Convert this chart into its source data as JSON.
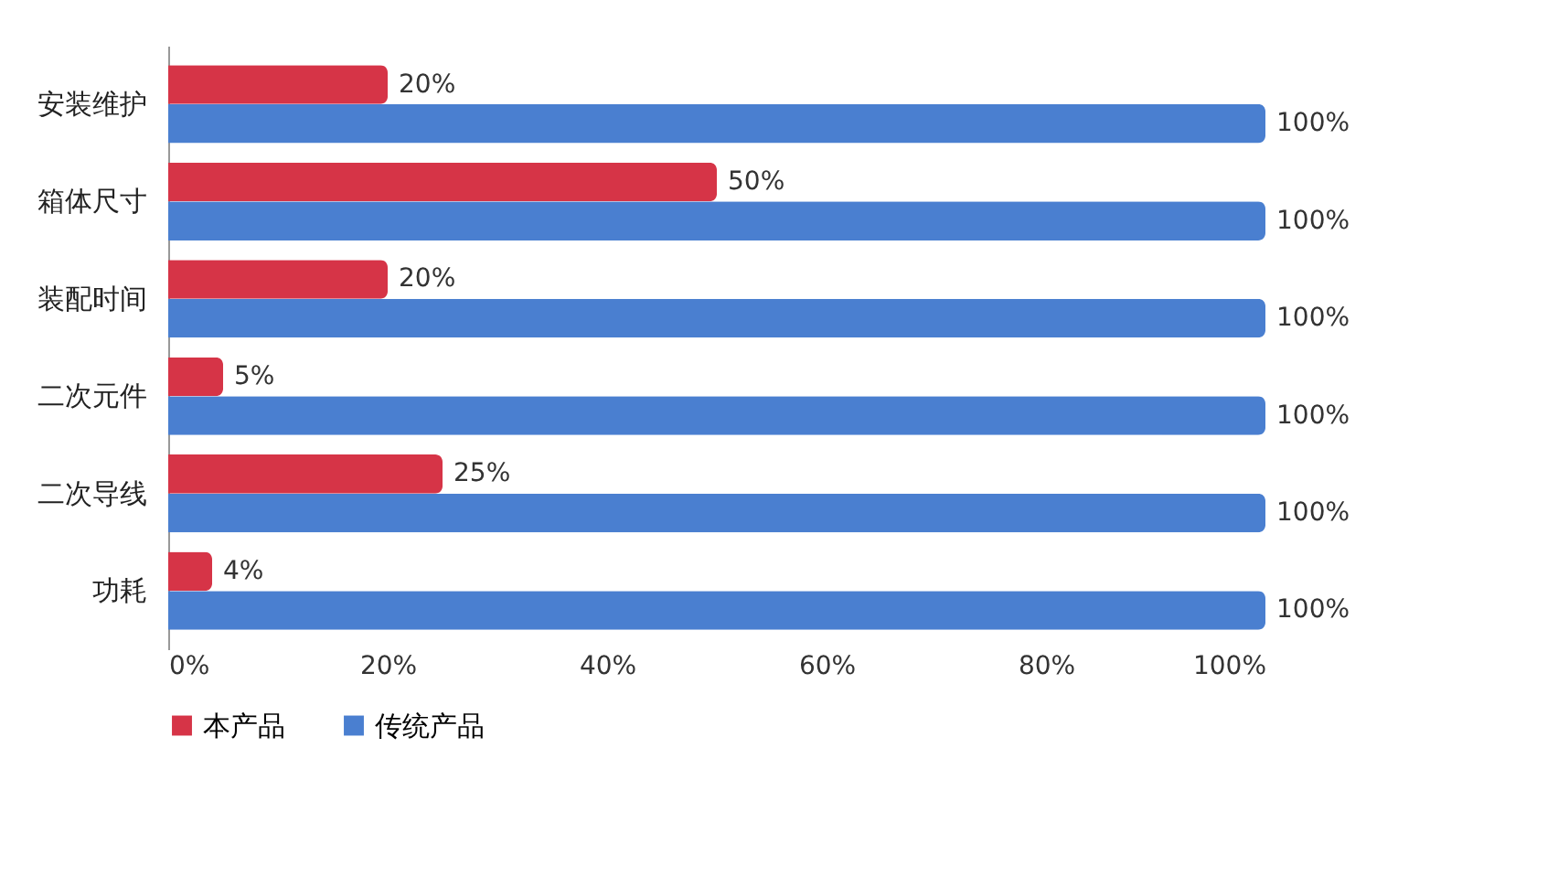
{
  "chart_data": {
    "type": "bar",
    "orientation": "horizontal",
    "categories": [
      "安装维护",
      "箱体尺寸",
      "装配时间",
      "二次元件",
      "二次导线",
      "功耗"
    ],
    "series": [
      {
        "name": "本产品",
        "color": "#d63447",
        "values": [
          20,
          50,
          20,
          5,
          25,
          4
        ],
        "value_labels": [
          "20%",
          "50%",
          "20%",
          "5%",
          "25%",
          "4%"
        ]
      },
      {
        "name": "传统产品",
        "color": "#4a7fd0",
        "values": [
          100,
          100,
          100,
          100,
          100,
          100
        ],
        "value_labels": [
          "100%",
          "100%",
          "100%",
          "100%",
          "100%",
          "100%"
        ]
      }
    ],
    "xlim": [
      0,
      100
    ],
    "xticks": [
      {
        "value": 0,
        "label": "0%"
      },
      {
        "value": 20,
        "label": "20%"
      },
      {
        "value": 40,
        "label": "40%"
      },
      {
        "value": 60,
        "label": "60%"
      },
      {
        "value": 80,
        "label": "80%"
      },
      {
        "value": 100,
        "label": "100%"
      }
    ],
    "legend": "bottom",
    "grid": false
  }
}
